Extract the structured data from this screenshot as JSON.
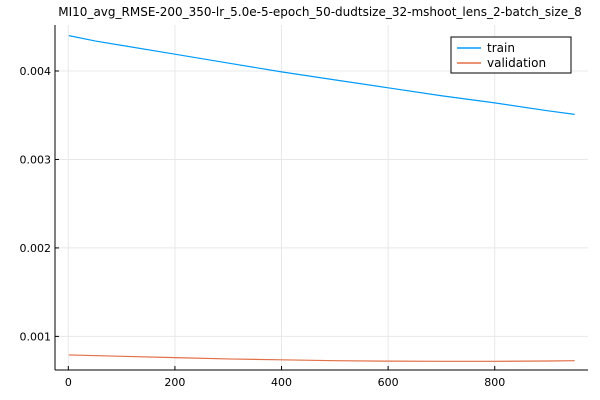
{
  "chart_data": {
    "type": "line",
    "title": "MI10_avg_RMSE-200_350-lr_5.0e-5-epoch_50-dudtsize_32-mshoot_lens_2-batch_size_8",
    "xlabel": "",
    "ylabel": "",
    "xlim": [
      -25,
      975
    ],
    "ylim": [
      0.00062,
      0.00452
    ],
    "xticks": [
      0,
      200,
      400,
      600,
      800
    ],
    "xtick_labels": [
      "0",
      "200",
      "400",
      "600",
      "800"
    ],
    "yticks": [
      0.001,
      0.002,
      0.003,
      0.004
    ],
    "ytick_labels": [
      "0.001",
      "0.002",
      "0.003",
      "0.004"
    ],
    "grid": true,
    "legend_position": "top-right",
    "series": [
      {
        "name": "train",
        "color": "#009af9",
        "x": [
          1,
          50,
          100,
          200,
          300,
          400,
          500,
          600,
          700,
          800,
          900,
          950
        ],
        "y": [
          0.0044,
          0.00434,
          0.00429,
          0.00419,
          0.00409,
          0.00399,
          0.0039,
          0.00381,
          0.00372,
          0.00364,
          0.00355,
          0.00351
        ]
      },
      {
        "name": "validation",
        "color": "#e26f46",
        "x": [
          1,
          100,
          200,
          300,
          400,
          500,
          600,
          700,
          800,
          900,
          950
        ],
        "y": [
          0.00079,
          0.000775,
          0.00076,
          0.000745,
          0.000735,
          0.000725,
          0.00072,
          0.000718,
          0.000718,
          0.000722,
          0.000725
        ]
      }
    ]
  }
}
